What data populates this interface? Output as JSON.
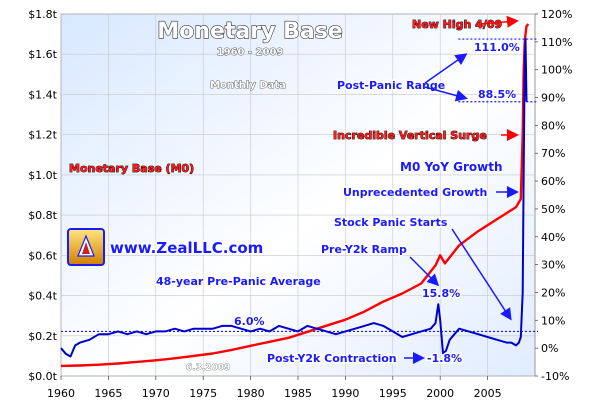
{
  "chart_data": {
    "type": "line",
    "title": "Monetary Base",
    "subtitle": "1960 - 2009",
    "frequency_label": "Monthly Data",
    "x_axis": {
      "ticks": [
        "1960",
        "1965",
        "1970",
        "1975",
        "1980",
        "1985",
        "1990",
        "1995",
        "2000",
        "2005"
      ],
      "range": [
        1960,
        2010
      ]
    },
    "y_left": {
      "ticks": [
        "$0.0t",
        "$0.2t",
        "$0.4t",
        "$0.6t",
        "$0.8t",
        "$1.0t",
        "$1.2t",
        "$1.4t",
        "$1.6t",
        "$1.8t"
      ],
      "range": [
        0,
        1.8
      ]
    },
    "y_right": {
      "ticks": [
        "-10%",
        "0%",
        "10%",
        "20%",
        "30%",
        "40%",
        "50%",
        "60%",
        "70%",
        "80%",
        "90%",
        "100%",
        "110%",
        "120%"
      ],
      "range": [
        -10,
        120
      ]
    },
    "grid": true,
    "series": [
      {
        "name": "Monetary Base (M0)",
        "axis": "left",
        "color": "#ff0000",
        "x": [
          1960,
          1962,
          1964,
          1966,
          1968,
          1970,
          1972,
          1974,
          1976,
          1978,
          1980,
          1982,
          1984,
          1986,
          1988,
          1990,
          1992,
          1994,
          1996,
          1998,
          1999.5,
          2000,
          2000.5,
          2002,
          2004,
          2006,
          2007,
          2008,
          2008.5,
          2008.7,
          2008.8,
          2008.9,
          2009,
          2009.1,
          2009.3
        ],
        "values": [
          0.05,
          0.052,
          0.056,
          0.062,
          0.07,
          0.078,
          0.088,
          0.1,
          0.112,
          0.13,
          0.15,
          0.17,
          0.19,
          0.22,
          0.25,
          0.28,
          0.32,
          0.37,
          0.41,
          0.46,
          0.55,
          0.6,
          0.56,
          0.65,
          0.72,
          0.78,
          0.81,
          0.84,
          0.88,
          1.2,
          1.5,
          1.65,
          1.7,
          1.74,
          1.75
        ]
      },
      {
        "name": "M0 YoY Growth",
        "axis": "right",
        "color": "#0000cc",
        "x": [
          1960,
          1960.5,
          1961,
          1961.5,
          1962,
          1963,
          1964,
          1965,
          1966,
          1967,
          1968,
          1969,
          1970,
          1971,
          1972,
          1973,
          1974,
          1975,
          1976,
          1977,
          1978,
          1979,
          1980,
          1981,
          1982,
          1983,
          1984,
          1985,
          1986,
          1987,
          1988,
          1989,
          1990,
          1991,
          1992,
          1993,
          1994,
          1995,
          1996,
          1997,
          1998,
          1999,
          1999.5,
          1999.8,
          2000,
          2000.3,
          2000.6,
          2001,
          2001.5,
          2002,
          2003,
          2004,
          2005,
          2006,
          2007,
          2007.5,
          2008,
          2008.3,
          2008.5,
          2008.7,
          2008.8,
          2008.9,
          2009,
          2009.1
        ],
        "values": [
          0,
          -2,
          -3,
          1,
          2,
          3,
          5,
          5,
          6,
          5,
          6,
          5,
          6,
          6,
          7,
          6,
          7,
          7,
          7,
          8,
          8,
          7,
          6,
          7,
          6,
          8,
          7,
          6,
          8,
          7,
          6,
          5,
          6,
          7,
          8,
          9,
          8,
          6,
          4,
          5,
          6,
          7,
          9,
          15.8,
          10,
          -1.8,
          -1,
          3,
          5,
          7,
          6,
          5,
          4,
          3,
          2,
          2,
          1,
          2,
          4,
          20,
          60,
          100,
          111,
          88.5
        ]
      }
    ],
    "reference_lines": [
      {
        "label": "48-year Pre-Panic Average",
        "value": 6.0,
        "axis": "right"
      },
      {
        "label": "Post-Panic Range high",
        "value": 111.0,
        "axis": "right"
      },
      {
        "label": "Post-Panic Range low",
        "value": 88.5,
        "axis": "right"
      }
    ],
    "annotations": [
      {
        "text": "New High 4/09",
        "color": "red"
      },
      {
        "text": "111.0%",
        "color": "blue"
      },
      {
        "text": "Post-Panic Range",
        "color": "blue"
      },
      {
        "text": "88.5%",
        "color": "blue"
      },
      {
        "text": "Incredible Vertical Surge",
        "color": "red"
      },
      {
        "text": "M0 YoY Growth",
        "color": "blue"
      },
      {
        "text": "Unprecedented Growth",
        "color": "blue"
      },
      {
        "text": "Stock Panic Starts",
        "color": "blue"
      },
      {
        "text": "Pre-Y2k Ramp",
        "color": "blue"
      },
      {
        "text": "15.8%",
        "color": "blue"
      },
      {
        "text": "48-year Pre-Panic Average",
        "color": "blue"
      },
      {
        "text": "6.0%",
        "color": "blue"
      },
      {
        "text": "Post-Y2k Contraction",
        "color": "blue"
      },
      {
        "text": "-1.8%",
        "color": "blue"
      },
      {
        "text": "Monetary Base (M0)",
        "color": "red"
      }
    ],
    "watermark": "www.ZealLLC.com",
    "date_stamp": "6.3.2009"
  }
}
